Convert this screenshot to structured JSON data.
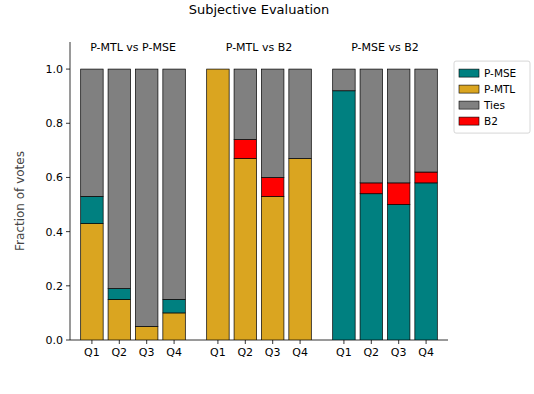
{
  "chart_data": {
    "type": "bar",
    "stacked": true,
    "title": "Subjective Evaluation",
    "y_label": "Fraction of votes",
    "annotations": [
      "P-MTL vs P-MSE",
      "P-MTL vs B2",
      "P-MSE vs B2"
    ],
    "categories": [
      "Q1",
      "Q2",
      "Q3",
      "Q4",
      "Q1",
      "Q2",
      "Q3",
      "Q4",
      "Q1",
      "Q2",
      "Q3",
      "Q4"
    ],
    "series": [
      {
        "name": "P-MSE",
        "color": "#008080",
        "values": [
          0.1,
          0.04,
          0,
          0.05,
          0,
          0,
          0,
          0,
          0.92,
          0.54,
          0.5,
          0.58
        ]
      },
      {
        "name": "P-MTL",
        "color": "#daa520",
        "values": [
          0.43,
          0.15,
          0.05,
          0.1,
          1.0,
          0.67,
          0.53,
          0.67,
          0,
          0,
          0,
          0
        ]
      },
      {
        "name": "Ties",
        "color": "#808080",
        "values": [
          0.47,
          0.81,
          0.95,
          0.85,
          0,
          0.26,
          0.4,
          0.33,
          0.08,
          0.42,
          0.42,
          0.38
        ]
      },
      {
        "name": "B2",
        "color": "#ff0000",
        "values": [
          0,
          0,
          0,
          0,
          0,
          0.07,
          0.07,
          0,
          0,
          0.04,
          0.08,
          0.04
        ]
      }
    ],
    "ylim": [
      0,
      1.1
    ],
    "yticks": [
      {
        "value": 0,
        "label": "0.0"
      },
      0.2,
      0.4,
      0.6,
      0.8,
      {
        "value": 1,
        "label": "1.0"
      }
    ],
    "grid": false,
    "legend": "upper right"
  }
}
